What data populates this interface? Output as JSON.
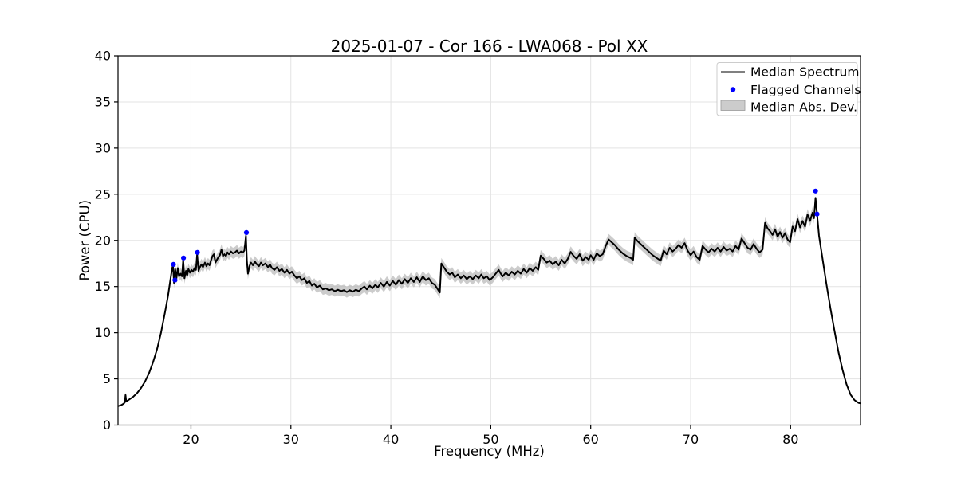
{
  "chart_data": {
    "type": "line",
    "title": "2025-01-07 - Cor 166 - LWA068 - Pol XX",
    "xlabel": "Frequency (MHz)",
    "ylabel": "Power (CPU)",
    "xlim": [
      12.7,
      87.0
    ],
    "ylim": [
      0,
      40
    ],
    "xticks": [
      20,
      30,
      40,
      50,
      60,
      70,
      80
    ],
    "yticks": [
      0,
      5,
      10,
      15,
      20,
      25,
      30,
      35,
      40
    ],
    "grid": true,
    "colors": {
      "line": "#000000",
      "flagged": "#0000ff",
      "band": "#b0b0b0",
      "band_opacity": 0.65,
      "grid": "#e3e3e3",
      "spine": "#000000",
      "legend_border": "#cccccc",
      "background": "#ffffff"
    },
    "legend": {
      "position": "upper right",
      "entries": [
        "Median Spectrum",
        "Flagged Channels",
        "Median Abs. Dev."
      ]
    },
    "series": [
      {
        "name": "Median Spectrum",
        "type": "line",
        "points": [
          [
            12.72,
            2.05
          ],
          [
            13.0,
            2.15
          ],
          [
            13.25,
            2.3
          ],
          [
            13.38,
            2.45
          ],
          [
            13.45,
            3.25
          ],
          [
            13.52,
            2.55
          ],
          [
            13.8,
            2.75
          ],
          [
            14.2,
            3.05
          ],
          [
            14.6,
            3.45
          ],
          [
            15.0,
            4.0
          ],
          [
            15.4,
            4.7
          ],
          [
            15.8,
            5.6
          ],
          [
            16.2,
            6.8
          ],
          [
            16.6,
            8.2
          ],
          [
            17.0,
            10.0
          ],
          [
            17.4,
            12.2
          ],
          [
            17.7,
            14.0
          ],
          [
            17.95,
            15.8
          ],
          [
            18.1,
            16.9
          ],
          [
            18.2,
            17.35
          ],
          [
            18.3,
            15.4
          ],
          [
            18.42,
            16.9
          ],
          [
            18.55,
            15.9
          ],
          [
            18.68,
            17.0
          ],
          [
            18.8,
            16.1
          ],
          [
            18.95,
            16.4
          ],
          [
            19.1,
            16.1
          ],
          [
            19.22,
            17.9
          ],
          [
            19.35,
            15.9
          ],
          [
            19.5,
            16.7
          ],
          [
            19.62,
            16.2
          ],
          [
            19.75,
            16.9
          ],
          [
            19.9,
            16.5
          ],
          [
            20.05,
            16.8
          ],
          [
            20.2,
            16.6
          ],
          [
            20.35,
            17.0
          ],
          [
            20.5,
            16.8
          ],
          [
            20.62,
            18.5
          ],
          [
            20.75,
            16.7
          ],
          [
            20.9,
            17.1
          ],
          [
            21.05,
            17.4
          ],
          [
            21.2,
            17.1
          ],
          [
            21.4,
            17.6
          ],
          [
            21.55,
            17.2
          ],
          [
            21.7,
            17.5
          ],
          [
            21.85,
            17.3
          ],
          [
            22.0,
            17.8
          ],
          [
            22.15,
            18.3
          ],
          [
            22.3,
            18.5
          ],
          [
            22.45,
            17.6
          ],
          [
            22.6,
            17.9
          ],
          [
            22.75,
            18.2
          ],
          [
            22.9,
            18.4
          ],
          [
            23.05,
            19.0
          ],
          [
            23.2,
            18.3
          ],
          [
            23.35,
            18.5
          ],
          [
            23.5,
            18.3
          ],
          [
            23.65,
            18.7
          ],
          [
            23.8,
            18.5
          ],
          [
            24.0,
            18.8
          ],
          [
            24.2,
            18.6
          ],
          [
            24.4,
            18.7
          ],
          [
            24.6,
            18.9
          ],
          [
            24.8,
            18.6
          ],
          [
            25.0,
            18.8
          ],
          [
            25.2,
            18.7
          ],
          [
            25.35,
            18.9
          ],
          [
            25.5,
            20.5
          ],
          [
            25.6,
            17.8
          ],
          [
            25.7,
            16.4
          ],
          [
            25.85,
            17.2
          ],
          [
            26.0,
            17.6
          ],
          [
            26.2,
            17.3
          ],
          [
            26.4,
            17.7
          ],
          [
            26.6,
            17.4
          ],
          [
            26.8,
            17.2
          ],
          [
            27.0,
            17.6
          ],
          [
            27.2,
            17.3
          ],
          [
            27.45,
            17.5
          ],
          [
            27.7,
            17.1
          ],
          [
            27.9,
            17.4
          ],
          [
            28.1,
            17.0
          ],
          [
            28.35,
            16.8
          ],
          [
            28.6,
            17.1
          ],
          [
            28.85,
            16.7
          ],
          [
            29.1,
            16.9
          ],
          [
            29.35,
            16.5
          ],
          [
            29.6,
            16.8
          ],
          [
            29.85,
            16.4
          ],
          [
            30.1,
            16.6
          ],
          [
            30.35,
            16.2
          ],
          [
            30.6,
            15.9
          ],
          [
            30.85,
            16.1
          ],
          [
            31.1,
            15.7
          ],
          [
            31.35,
            15.9
          ],
          [
            31.6,
            15.4
          ],
          [
            31.85,
            15.6
          ],
          [
            32.1,
            15.1
          ],
          [
            32.35,
            15.3
          ],
          [
            32.6,
            14.9
          ],
          [
            32.9,
            15.1
          ],
          [
            33.2,
            14.7
          ],
          [
            33.5,
            14.8
          ],
          [
            33.8,
            14.6
          ],
          [
            34.1,
            14.7
          ],
          [
            34.4,
            14.5
          ],
          [
            34.7,
            14.65
          ],
          [
            35.0,
            14.5
          ],
          [
            35.3,
            14.6
          ],
          [
            35.6,
            14.4
          ],
          [
            35.9,
            14.6
          ],
          [
            36.2,
            14.45
          ],
          [
            36.5,
            14.65
          ],
          [
            36.8,
            14.5
          ],
          [
            37.1,
            14.8
          ],
          [
            37.35,
            15.0
          ],
          [
            37.6,
            14.7
          ],
          [
            37.9,
            15.1
          ],
          [
            38.15,
            14.8
          ],
          [
            38.45,
            15.2
          ],
          [
            38.7,
            14.9
          ],
          [
            39.0,
            15.4
          ],
          [
            39.3,
            15.0
          ],
          [
            39.6,
            15.5
          ],
          [
            39.9,
            15.1
          ],
          [
            40.2,
            15.6
          ],
          [
            40.5,
            15.2
          ],
          [
            40.8,
            15.7
          ],
          [
            41.1,
            15.3
          ],
          [
            41.4,
            15.8
          ],
          [
            41.7,
            15.4
          ],
          [
            42.0,
            15.9
          ],
          [
            42.3,
            15.5
          ],
          [
            42.6,
            16.0
          ],
          [
            42.9,
            15.5
          ],
          [
            43.2,
            16.1
          ],
          [
            43.5,
            15.7
          ],
          [
            43.8,
            15.9
          ],
          [
            44.1,
            15.4
          ],
          [
            44.4,
            15.2
          ],
          [
            44.7,
            14.7
          ],
          [
            44.9,
            14.35
          ],
          [
            45.05,
            17.5
          ],
          [
            45.3,
            17.1
          ],
          [
            45.6,
            16.6
          ],
          [
            45.9,
            16.3
          ],
          [
            46.15,
            16.5
          ],
          [
            46.4,
            16.0
          ],
          [
            46.7,
            16.3
          ],
          [
            47.0,
            15.9
          ],
          [
            47.3,
            16.2
          ],
          [
            47.6,
            15.8
          ],
          [
            47.9,
            16.1
          ],
          [
            48.2,
            15.8
          ],
          [
            48.5,
            16.2
          ],
          [
            48.8,
            15.9
          ],
          [
            49.05,
            16.3
          ],
          [
            49.3,
            15.9
          ],
          [
            49.6,
            16.1
          ],
          [
            49.9,
            15.7
          ],
          [
            50.2,
            16.0
          ],
          [
            50.5,
            16.4
          ],
          [
            50.8,
            16.8
          ],
          [
            51.0,
            16.4
          ],
          [
            51.2,
            16.1
          ],
          [
            51.5,
            16.5
          ],
          [
            51.8,
            16.2
          ],
          [
            52.1,
            16.6
          ],
          [
            52.4,
            16.3
          ],
          [
            52.7,
            16.7
          ],
          [
            53.0,
            16.4
          ],
          [
            53.3,
            16.9
          ],
          [
            53.6,
            16.5
          ],
          [
            53.9,
            17.0
          ],
          [
            54.2,
            16.7
          ],
          [
            54.5,
            17.1
          ],
          [
            54.75,
            16.8
          ],
          [
            55.0,
            18.35
          ],
          [
            55.3,
            18.0
          ],
          [
            55.6,
            17.6
          ],
          [
            55.9,
            17.8
          ],
          [
            56.2,
            17.4
          ],
          [
            56.5,
            17.7
          ],
          [
            56.8,
            17.3
          ],
          [
            57.1,
            17.9
          ],
          [
            57.4,
            17.5
          ],
          [
            57.7,
            18.0
          ],
          [
            58.0,
            18.75
          ],
          [
            58.3,
            18.3
          ],
          [
            58.6,
            18.0
          ],
          [
            58.9,
            18.5
          ],
          [
            59.2,
            17.8
          ],
          [
            59.5,
            18.2
          ],
          [
            59.8,
            17.9
          ],
          [
            60.0,
            18.4
          ],
          [
            60.3,
            17.9
          ],
          [
            60.6,
            18.6
          ],
          [
            60.9,
            18.3
          ],
          [
            61.2,
            18.5
          ],
          [
            61.5,
            19.4
          ],
          [
            61.8,
            20.1
          ],
          [
            62.1,
            19.8
          ],
          [
            62.4,
            19.5
          ],
          [
            62.8,
            19.0
          ],
          [
            63.2,
            18.6
          ],
          [
            63.6,
            18.3
          ],
          [
            64.0,
            18.1
          ],
          [
            64.25,
            17.9
          ],
          [
            64.4,
            20.3
          ],
          [
            64.7,
            19.9
          ],
          [
            65.0,
            19.6
          ],
          [
            65.4,
            19.2
          ],
          [
            65.8,
            18.8
          ],
          [
            66.2,
            18.4
          ],
          [
            66.6,
            18.1
          ],
          [
            67.0,
            17.8
          ],
          [
            67.3,
            18.9
          ],
          [
            67.6,
            18.5
          ],
          [
            67.9,
            19.2
          ],
          [
            68.2,
            18.8
          ],
          [
            68.5,
            19.1
          ],
          [
            68.8,
            19.5
          ],
          [
            69.1,
            19.2
          ],
          [
            69.4,
            19.7
          ],
          [
            69.7,
            18.9
          ],
          [
            70.0,
            18.4
          ],
          [
            70.3,
            18.8
          ],
          [
            70.6,
            18.2
          ],
          [
            70.9,
            17.9
          ],
          [
            71.2,
            19.4
          ],
          [
            71.5,
            19.0
          ],
          [
            71.8,
            18.7
          ],
          [
            72.1,
            19.1
          ],
          [
            72.4,
            18.8
          ],
          [
            72.7,
            19.2
          ],
          [
            73.0,
            18.8
          ],
          [
            73.3,
            19.3
          ],
          [
            73.6,
            18.9
          ],
          [
            73.9,
            19.1
          ],
          [
            74.2,
            18.8
          ],
          [
            74.5,
            19.4
          ],
          [
            74.8,
            19.0
          ],
          [
            75.1,
            20.2
          ],
          [
            75.4,
            19.7
          ],
          [
            75.7,
            19.2
          ],
          [
            76.0,
            19.0
          ],
          [
            76.3,
            19.6
          ],
          [
            76.6,
            19.1
          ],
          [
            76.9,
            18.7
          ],
          [
            77.2,
            19.0
          ],
          [
            77.45,
            21.9
          ],
          [
            77.7,
            21.3
          ],
          [
            77.95,
            21.0
          ],
          [
            78.2,
            20.6
          ],
          [
            78.45,
            21.2
          ],
          [
            78.7,
            20.4
          ],
          [
            78.95,
            20.9
          ],
          [
            79.2,
            20.3
          ],
          [
            79.45,
            20.8
          ],
          [
            79.7,
            20.1
          ],
          [
            79.95,
            19.8
          ],
          [
            80.2,
            21.5
          ],
          [
            80.45,
            21.0
          ],
          [
            80.7,
            22.3
          ],
          [
            80.95,
            21.4
          ],
          [
            81.2,
            22.1
          ],
          [
            81.45,
            21.5
          ],
          [
            81.7,
            22.8
          ],
          [
            81.95,
            22.1
          ],
          [
            82.2,
            23.0
          ],
          [
            82.35,
            22.4
          ],
          [
            82.5,
            24.6
          ],
          [
            82.65,
            22.85
          ],
          [
            82.85,
            20.5
          ],
          [
            83.2,
            18.0
          ],
          [
            83.6,
            15.2
          ],
          [
            84.0,
            12.6
          ],
          [
            84.4,
            10.2
          ],
          [
            84.8,
            7.9
          ],
          [
            85.2,
            6.0
          ],
          [
            85.6,
            4.4
          ],
          [
            86.0,
            3.3
          ],
          [
            86.4,
            2.7
          ],
          [
            86.8,
            2.4
          ],
          [
            87.0,
            2.35
          ]
        ]
      },
      {
        "name": "Flagged Channels",
        "type": "scatter",
        "points": [
          [
            18.25,
            17.4
          ],
          [
            18.4,
            15.7
          ],
          [
            19.25,
            18.1
          ],
          [
            20.65,
            18.7
          ],
          [
            25.55,
            20.85
          ],
          [
            82.5,
            25.35
          ],
          [
            82.65,
            22.85
          ]
        ]
      },
      {
        "name": "Median Abs. Dev.",
        "type": "band",
        "follows": "Median Spectrum",
        "segments": [
          {
            "start": 13.38,
            "end": 13.55,
            "halfwidth": 0.3
          },
          {
            "start": 18.2,
            "end": 82.45,
            "halfwidth": 0.6
          }
        ]
      }
    ]
  }
}
